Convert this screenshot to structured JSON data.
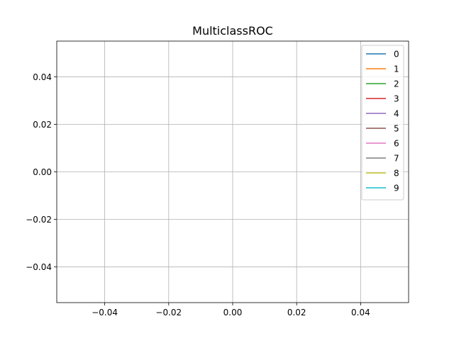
{
  "chart_data": {
    "type": "line",
    "title": "MulticlassROC",
    "xlabel": "",
    "ylabel": "",
    "xlim": [
      -0.055,
      0.055
    ],
    "ylim": [
      -0.055,
      0.055
    ],
    "xticks": [
      -0.04,
      -0.02,
      0.0,
      0.02,
      0.04
    ],
    "yticks": [
      -0.04,
      -0.02,
      0.0,
      0.02,
      0.04
    ],
    "xtick_labels": [
      "−0.04",
      "−0.02",
      "0.00",
      "0.02",
      "0.04"
    ],
    "ytick_labels": [
      "−0.04",
      "−0.02",
      "0.00",
      "0.02",
      "0.04"
    ],
    "grid": true,
    "legend_placement": "top-right",
    "series": [
      {
        "name": "0",
        "color": "#1f77b4",
        "x": [],
        "y": []
      },
      {
        "name": "1",
        "color": "#ff7f0e",
        "x": [],
        "y": []
      },
      {
        "name": "2",
        "color": "#2ca02c",
        "x": [],
        "y": []
      },
      {
        "name": "3",
        "color": "#d62728",
        "x": [],
        "y": []
      },
      {
        "name": "4",
        "color": "#9467bd",
        "x": [],
        "y": []
      },
      {
        "name": "5",
        "color": "#8c564b",
        "x": [],
        "y": []
      },
      {
        "name": "6",
        "color": "#e377c2",
        "x": [],
        "y": []
      },
      {
        "name": "7",
        "color": "#7f7f7f",
        "x": [],
        "y": []
      },
      {
        "name": "8",
        "color": "#bcbd22",
        "x": [],
        "y": []
      },
      {
        "name": "9",
        "color": "#17becf",
        "x": [],
        "y": []
      }
    ]
  }
}
